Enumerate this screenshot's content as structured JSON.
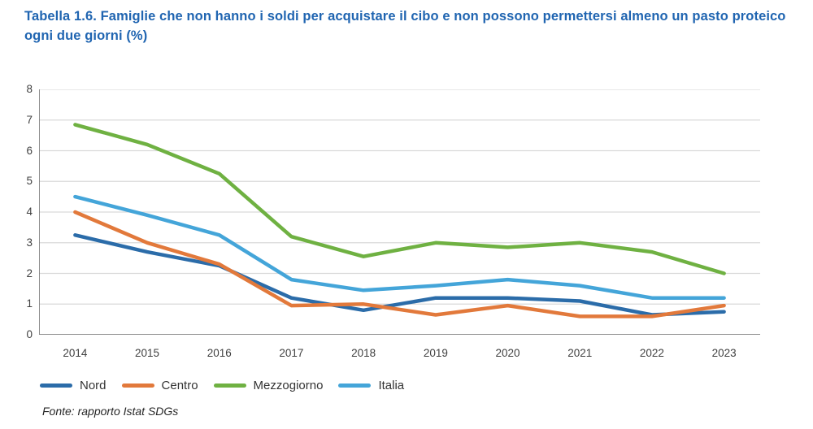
{
  "title": "Tabella 1.6. Famiglie che non hanno i soldi per acquistare il cibo e non possono permettersi almeno un pasto proteico ogni due giorni (%)",
  "source": "Fonte: rapporto Istat SDGs",
  "colors": {
    "title_text": "#2065B1",
    "grid": "#D9D9D9",
    "axis": "#808080",
    "tick_text": "#404040"
  },
  "chart_data": {
    "type": "line",
    "title": "Tabella 1.6. Famiglie che non hanno i soldi per acquistare il cibo e non possono permettersi almeno un pasto proteico ogni due giorni (%)",
    "categories": [
      "2014",
      "2015",
      "2016",
      "2017",
      "2018",
      "2019",
      "2020",
      "2021",
      "2022",
      "2023"
    ],
    "series": [
      {
        "name": "Nord",
        "color": "#2B6CA9",
        "values": [
          3.25,
          2.7,
          2.25,
          1.2,
          0.8,
          1.2,
          1.2,
          1.1,
          0.65,
          0.75
        ]
      },
      {
        "name": "Centro",
        "color": "#E2793B",
        "values": [
          4.0,
          3.0,
          2.3,
          0.95,
          1.0,
          0.65,
          0.95,
          0.6,
          0.6,
          0.95
        ]
      },
      {
        "name": "Mezzogiorno",
        "color": "#6FB142",
        "values": [
          6.85,
          6.2,
          5.25,
          3.2,
          2.55,
          3.0,
          2.85,
          3.0,
          2.7,
          2.0
        ]
      },
      {
        "name": "Italia",
        "color": "#44A5D9",
        "values": [
          4.5,
          3.9,
          3.25,
          1.8,
          1.45,
          1.6,
          1.8,
          1.6,
          1.2,
          1.2
        ]
      }
    ],
    "xlabel": "",
    "ylabel": "",
    "ylim": [
      0,
      8
    ],
    "yticks": [
      0,
      1,
      2,
      3,
      4,
      5,
      6,
      7,
      8
    ],
    "grid": true,
    "legend_position": "bottom",
    "legend_order": [
      "Nord",
      "Centro",
      "Mezzogiorno",
      "Italia"
    ]
  }
}
